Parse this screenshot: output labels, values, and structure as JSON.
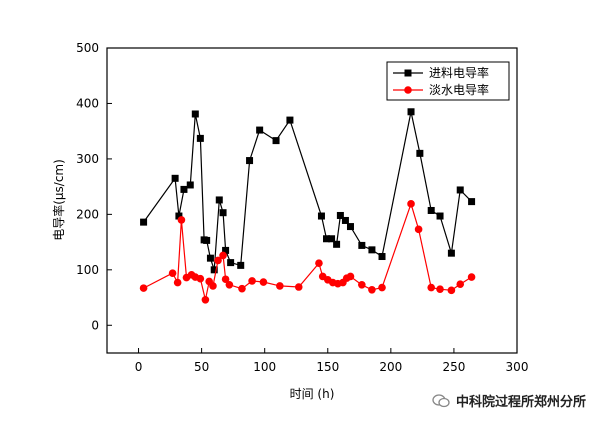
{
  "chart_data": {
    "type": "line",
    "xlabel": "时间 (h)",
    "ylabel": "电导率(μs/cm)",
    "xlim": [
      -25,
      300
    ],
    "ylim": [
      -50,
      500
    ],
    "xticks": [
      0,
      50,
      100,
      150,
      200,
      250,
      300
    ],
    "yticks": [
      0,
      100,
      200,
      300,
      400,
      500
    ],
    "legend_position": "top-right",
    "series": [
      {
        "name": "进料电导率",
        "color": "#000000",
        "marker": "square",
        "x": [
          4,
          29,
          32,
          36,
          41,
          45,
          49,
          52,
          54,
          57,
          60,
          64,
          67,
          69,
          73,
          81,
          88,
          96,
          109,
          120,
          145,
          149,
          153,
          157,
          160,
          164,
          168,
          177,
          185,
          193,
          216,
          223,
          232,
          239,
          248,
          255,
          264
        ],
        "y": [
          186,
          265,
          197,
          245,
          253,
          381,
          337,
          154,
          153,
          121,
          100,
          226,
          203,
          135,
          113,
          108,
          297,
          352,
          333,
          370,
          197,
          156,
          156,
          146,
          198,
          189,
          178,
          144,
          136,
          124,
          385,
          310,
          207,
          197,
          130,
          244,
          223
        ]
      },
      {
        "name": "淡水电导率",
        "color": "#ff0000",
        "marker": "circle",
        "x": [
          4,
          27,
          31,
          34,
          38,
          42,
          45,
          49,
          53,
          56,
          59,
          63,
          67,
          69,
          72,
          82,
          90,
          99,
          112,
          127,
          143,
          146,
          150,
          154,
          158,
          162,
          165,
          168,
          177,
          185,
          193,
          216,
          222,
          232,
          239,
          248,
          255,
          264
        ],
        "y": [
          67,
          94,
          77,
          190,
          86,
          91,
          87,
          84,
          46,
          79,
          71,
          117,
          126,
          83,
          73,
          66,
          80,
          78,
          71,
          69,
          112,
          88,
          82,
          77,
          75,
          77,
          85,
          88,
          73,
          64,
          68,
          219,
          173,
          68,
          65,
          63,
          74,
          87
        ]
      }
    ]
  },
  "watermark": {
    "icon": "wechat-icon",
    "text": "中科院过程所郑州分所"
  }
}
